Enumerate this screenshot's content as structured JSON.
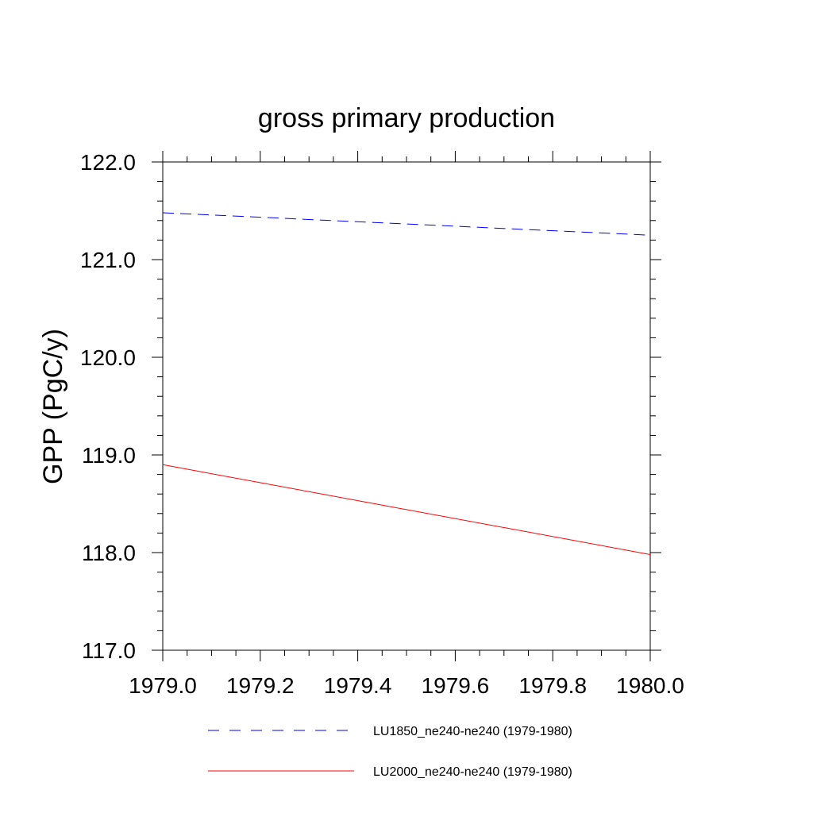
{
  "chart_data": {
    "type": "line",
    "title": "gross primary production",
    "ylabel": "GPP  (PgC/y)",
    "xlabel": "",
    "xlim": [
      1979.0,
      1980.0
    ],
    "ylim": [
      117.0,
      122.0
    ],
    "x_ticks": [
      1979.0,
      1979.2,
      1979.4,
      1979.6,
      1979.8,
      1980.0
    ],
    "x_tick_labels": [
      "1979.0",
      "1979.2",
      "1979.4",
      "1979.6",
      "1979.8",
      "1980.0"
    ],
    "y_ticks": [
      117.0,
      118.0,
      119.0,
      120.0,
      121.0,
      122.0
    ],
    "y_tick_labels": [
      "117.0",
      "118.0",
      "119.0",
      "120.0",
      "121.0",
      "122.0"
    ],
    "grid": false,
    "legend_position": "bottom",
    "series": [
      {
        "name": "LU1850_ne240-ne240 (1979-1980)",
        "color": "#0000ff",
        "dash": "dashed",
        "x": [
          1979.0,
          1980.0
        ],
        "y": [
          121.48,
          121.25
        ]
      },
      {
        "name": "LU2000_ne240-ne240 (1979-1980)",
        "color": "#ff0000",
        "dash": "solid",
        "x": [
          1979.0,
          1980.0
        ],
        "y": [
          118.9,
          117.98
        ]
      }
    ]
  }
}
